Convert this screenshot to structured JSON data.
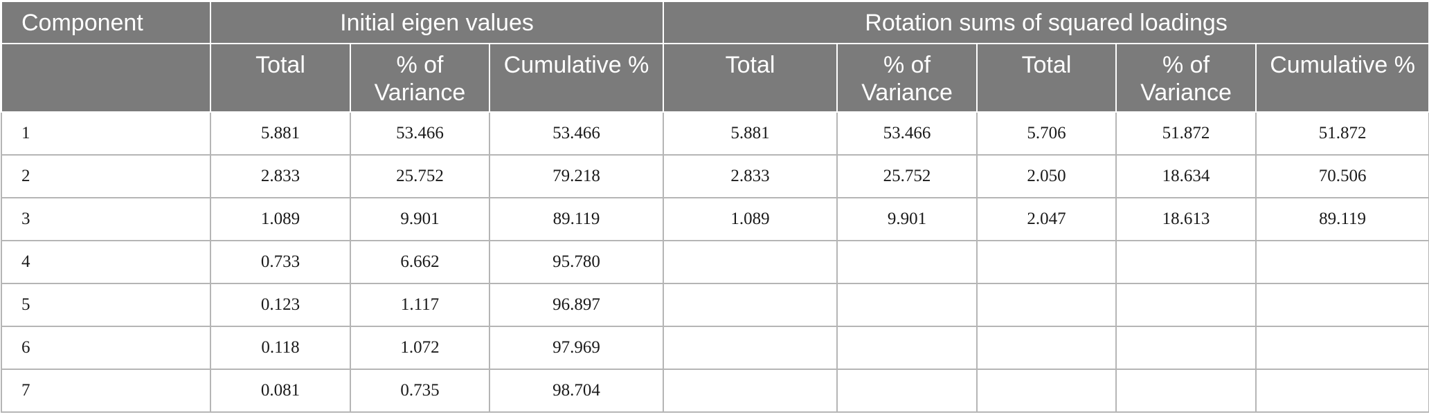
{
  "table": {
    "group_headers": {
      "component": "Component",
      "initial": "Initial eigen values",
      "rotation": "Rotation sums of squared loadings"
    },
    "sub_headers": [
      "",
      "Total",
      "% of Variance",
      "Cumulative %",
      "Total",
      "% of Variance",
      "Total",
      "% of Variance",
      "Cumulative %"
    ],
    "rows": [
      [
        "1",
        "5.881",
        "53.466",
        "53.466",
        "5.881",
        "53.466",
        "5.706",
        "51.872",
        "51.872"
      ],
      [
        "2",
        "2.833",
        "25.752",
        "79.218",
        "2.833",
        "25.752",
        "2.050",
        "18.634",
        "70.506"
      ],
      [
        "3",
        "1.089",
        "9.901",
        "89.119",
        "1.089",
        "9.901",
        "2.047",
        "18.613",
        "89.119"
      ],
      [
        "4",
        "0.733",
        "6.662",
        "95.780",
        "",
        "",
        "",
        "",
        ""
      ],
      [
        "5",
        "0.123",
        "1.117",
        "96.897",
        "",
        "",
        "",
        "",
        ""
      ],
      [
        "6",
        "0.118",
        "1.072",
        "97.969",
        "",
        "",
        "",
        "",
        ""
      ],
      [
        "7",
        "0.081",
        "0.735",
        "98.704",
        "",
        "",
        "",
        "",
        ""
      ]
    ]
  }
}
